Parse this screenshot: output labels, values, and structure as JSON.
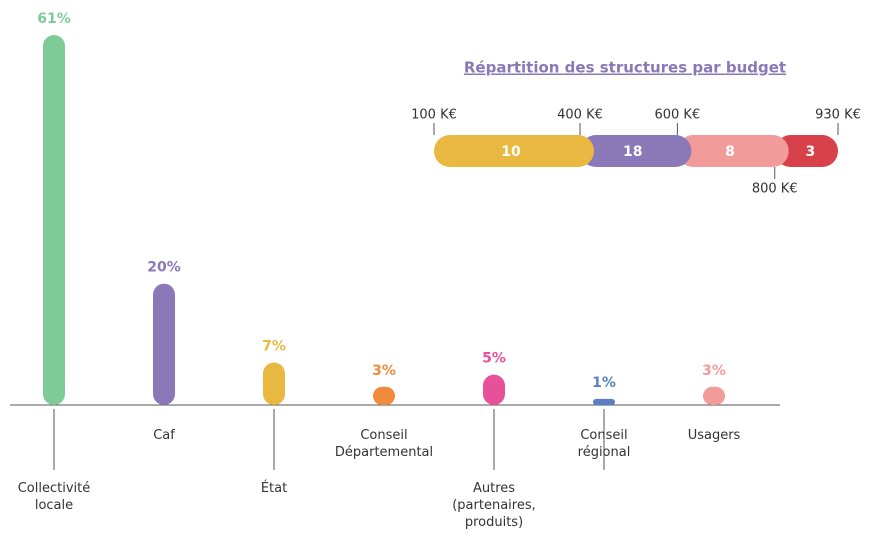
{
  "chart_data": [
    {
      "type": "bar",
      "categories": [
        "Collectivité locale",
        "Caf",
        "État",
        "Conseil Départemental",
        "Autres (partenaires, produits)",
        "Conseil régional",
        "Usagers"
      ],
      "values": [
        61,
        20,
        7,
        3,
        5,
        1,
        3
      ],
      "value_labels": [
        "61%",
        "20%",
        "7%",
        "3%",
        "5%",
        "1%",
        "3%"
      ],
      "colors": [
        "#7fcb98",
        "#8a78b8",
        "#e9b840",
        "#f08a3c",
        "#e8509a",
        "#5a7fc2",
        "#f29b9b"
      ]
    },
    {
      "type": "segmented-bar",
      "title": "Répartition des structures par budget",
      "values": [
        10,
        18,
        8,
        3
      ],
      "colors": [
        "#e9b840",
        "#8a78b8",
        "#f29b9b",
        "#d9414a"
      ],
      "xlim": [
        100,
        930
      ],
      "xticks": [
        {
          "value": 100,
          "label": "100 K€"
        },
        {
          "value": 400,
          "label": "400 K€"
        },
        {
          "value": 600,
          "label": "600 K€"
        },
        {
          "value": 800,
          "label": "800 K€"
        },
        {
          "value": 930,
          "label": "930 K€"
        }
      ]
    }
  ]
}
